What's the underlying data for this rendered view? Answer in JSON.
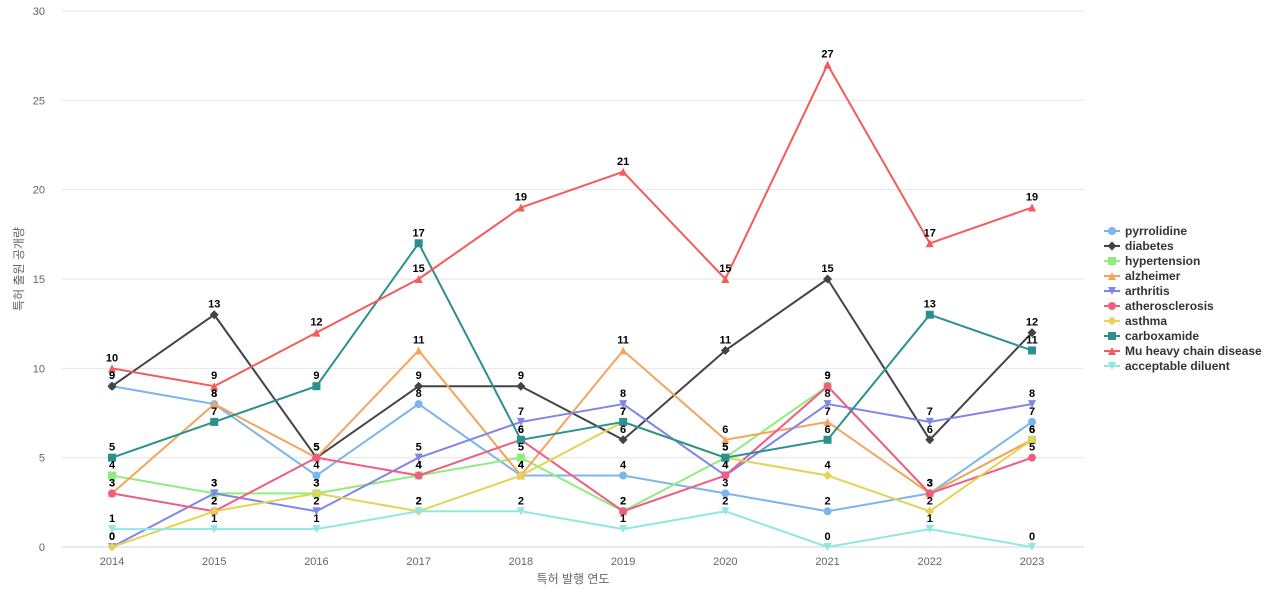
{
  "chart_data": {
    "type": "line",
    "xlabel": "특허 발행 연도",
    "ylabel": "특허 출원 공개량",
    "ylim": [
      0,
      30
    ],
    "yticks": [
      0,
      5,
      10,
      15,
      20,
      25,
      30
    ],
    "categories": [
      "2014",
      "2015",
      "2016",
      "2017",
      "2018",
      "2019",
      "2020",
      "2021",
      "2022",
      "2023"
    ],
    "grid": "horizontal",
    "legend_position": "right",
    "series": [
      {
        "name": "pyrrolidine",
        "color": "#7cb5ec",
        "marker": "circle",
        "values": [
          9,
          8,
          4,
          8,
          4,
          4,
          3,
          2,
          3,
          7
        ]
      },
      {
        "name": "diabetes",
        "color": "#434348",
        "marker": "diamond",
        "values": [
          9,
          13,
          5,
          9,
          9,
          6,
          11,
          15,
          6,
          12
        ]
      },
      {
        "name": "hypertension",
        "color": "#90ed7d",
        "marker": "square",
        "values": [
          4,
          3,
          3,
          4,
          5,
          2,
          5,
          9,
          3,
          6
        ]
      },
      {
        "name": "alzheimer",
        "color": "#f7a35c",
        "marker": "triangle",
        "values": [
          3,
          8,
          5,
          11,
          4,
          11,
          6,
          7,
          3,
          6
        ]
      },
      {
        "name": "arthritis",
        "color": "#8085e9",
        "marker": "triangle-down",
        "values": [
          0,
          3,
          2,
          5,
          7,
          8,
          4,
          8,
          7,
          8
        ]
      },
      {
        "name": "atherosclerosis",
        "color": "#f15c80",
        "marker": "circle",
        "values": [
          3,
          2,
          5,
          4,
          6,
          2,
          4,
          9,
          3,
          5
        ]
      },
      {
        "name": "asthma",
        "color": "#e4d354",
        "marker": "diamond",
        "values": [
          0,
          2,
          3,
          2,
          4,
          7,
          5,
          4,
          2,
          6
        ]
      },
      {
        "name": "carboxamide",
        "color": "#2b908f",
        "marker": "square",
        "values": [
          5,
          7,
          9,
          17,
          6,
          7,
          5,
          6,
          13,
          11
        ]
      },
      {
        "name": "Mu heavy chain disease",
        "color": "#f45b5b",
        "marker": "triangle",
        "values": [
          10,
          9,
          12,
          15,
          19,
          21,
          15,
          27,
          17,
          19
        ]
      },
      {
        "name": "acceptable diluent",
        "color": "#91e8e1",
        "marker": "triangle-down",
        "values": [
          1,
          1,
          1,
          2,
          2,
          1,
          2,
          0,
          1,
          0
        ]
      }
    ]
  }
}
